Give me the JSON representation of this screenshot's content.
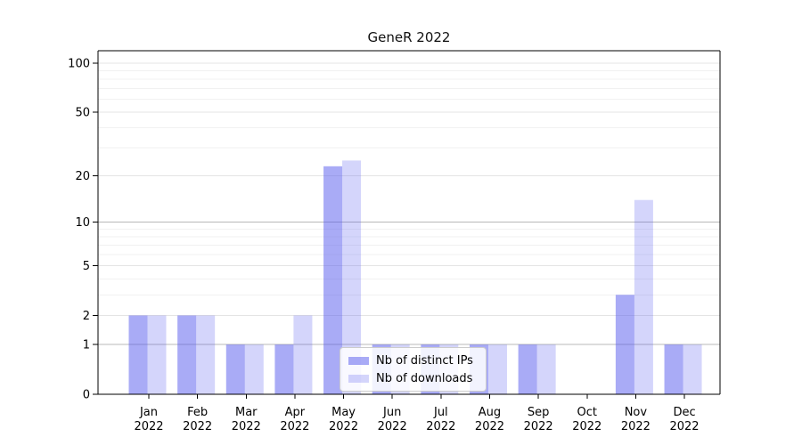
{
  "chart_data": {
    "type": "bar",
    "title": "GeneR 2022",
    "xlabel": "",
    "ylabel": "",
    "categories": [
      "Jan",
      "Feb",
      "Mar",
      "Apr",
      "May",
      "Jun",
      "Jul",
      "Aug",
      "Sep",
      "Oct",
      "Nov",
      "Dec"
    ],
    "category_year": "2022",
    "series": [
      {
        "name": "Nb of distinct IPs",
        "color": "rgba(83,87,238,0.5)",
        "values": [
          2,
          2,
          1,
          1,
          23,
          1,
          1,
          1,
          1,
          0,
          3,
          1
        ]
      },
      {
        "name": "Nb of downloads",
        "color": "rgba(83,87,238,0.25)",
        "values": [
          2,
          2,
          1,
          2,
          25,
          1,
          1,
          1,
          1,
          0,
          14,
          1
        ]
      }
    ],
    "y_axis": {
      "scale": "log1p",
      "major_ticks": [
        0,
        1,
        2,
        5,
        10,
        20,
        50,
        100
      ],
      "emphasized_gridlines": [
        1,
        10
      ],
      "minor_gridlines": [
        3,
        4,
        6,
        7,
        8,
        9,
        30,
        40,
        60,
        70,
        80,
        90
      ],
      "range_top_value": 120
    },
    "grid": true,
    "legend_position": "inside-bottom-center"
  },
  "style": {
    "grid_minor_color": "#f1f1f1",
    "grid_major_color": "#e4e4e4",
    "grid_emphasis_color": "#b8b8b8",
    "axis_color": "#000000",
    "tick_label_color": "#000000",
    "title_color": "#111111",
    "legend_border_color": "#cccccc"
  }
}
